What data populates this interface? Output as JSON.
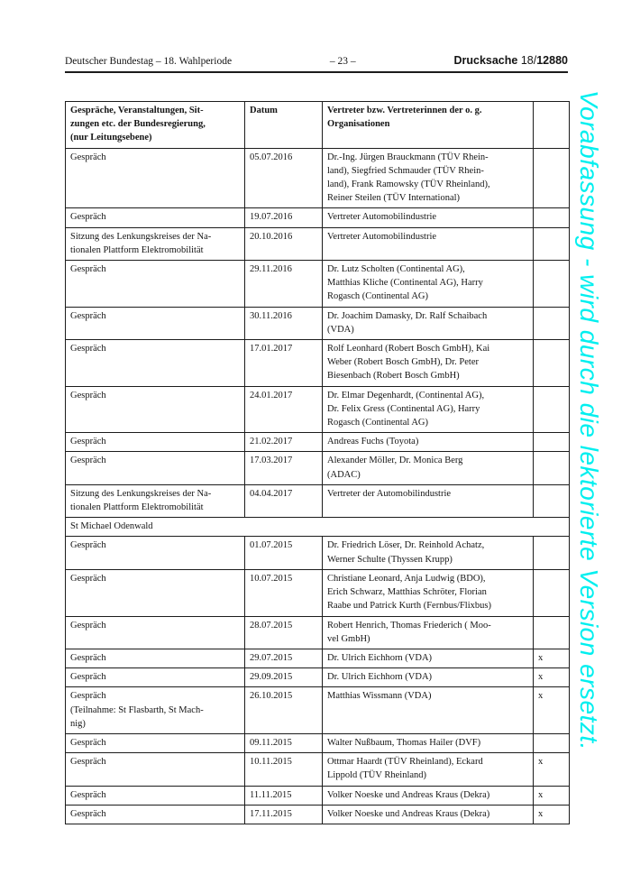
{
  "page_header": {
    "left": "Deutscher Bundestag – 18. Wahlperiode",
    "center": "– 23 –",
    "right_label": "Drucksache",
    "right_number_prefix": "18/",
    "right_number": "12880"
  },
  "watermark": {
    "text": "Vorabfassung - wird durch die lektorierte Version ersetzt.",
    "color": "#00efef"
  },
  "table": {
    "columns": [
      {
        "label": "Gespräche, Veranstaltungen, Sit-\nzungen etc. der Bundesregierung,\n(nur Leitungsebene)"
      },
      {
        "label": "Datum"
      },
      {
        "label": "Vertreter bzw. Vertreterinnen der o. g.\nOrganisationen"
      },
      {
        "label": ""
      }
    ],
    "mark_symbol": "x",
    "rows": [
      {
        "type": "data",
        "event": "Gespräch",
        "date": "05.07.2016",
        "representatives": "Dr.-Ing. Jürgen Brauckmann (TÜV Rhein-\nland), Siegfried Schmauder (TÜV Rhein-\nland), Frank Ramowsky (TÜV Rheinland),\nReiner Steilen (TÜV International)",
        "mark": ""
      },
      {
        "type": "data",
        "event": "Gespräch",
        "date": "19.07.2016",
        "representatives": "Vertreter Automobilindustrie",
        "mark": ""
      },
      {
        "type": "data",
        "event": "Sitzung des Lenkungskreises der Na-\ntionalen Plattform Elektromobilität",
        "date": "20.10.2016",
        "representatives": "Vertreter Automobilindustrie",
        "mark": ""
      },
      {
        "type": "data",
        "event": "Gespräch",
        "date": "29.11.2016",
        "representatives": "Dr. Lutz Scholten (Continental AG),\nMatthias Kliche (Continental AG), Harry\nRogasch (Continental AG)",
        "mark": ""
      },
      {
        "type": "data",
        "event": "Gespräch",
        "date": "30.11.2016",
        "representatives": "Dr. Joachim Damasky, Dr. Ralf Schaibach\n(VDA)",
        "mark": ""
      },
      {
        "type": "data",
        "event": "Gespräch",
        "date": "17.01.2017",
        "representatives": "Rolf Leonhard (Robert Bosch GmbH), Kai\nWeber (Robert Bosch GmbH), Dr. Peter\nBiesenbach (Robert Bosch GmbH)",
        "mark": ""
      },
      {
        "type": "data",
        "event": "Gespräch",
        "date": "24.01.2017",
        "representatives": "Dr. Elmar Degenhardt, (Continental AG),\nDr. Felix Gress (Continental AG), Harry\nRogasch (Continental AG)",
        "mark": ""
      },
      {
        "type": "data",
        "event": "Gespräch",
        "date": "21.02.2017",
        "representatives": "Andreas Fuchs (Toyota)",
        "mark": ""
      },
      {
        "type": "data",
        "event": "Gespräch",
        "date": "17.03.2017",
        "representatives": "Alexander Möller, Dr. Monica Berg\n(ADAC)",
        "mark": ""
      },
      {
        "type": "data",
        "event": "Sitzung des Lenkungskreises der Na-\ntionalen Plattform Elektromobilität",
        "date": "04.04.2017",
        "representatives": "Vertreter der Automobilindustrie",
        "mark": ""
      },
      {
        "type": "section",
        "title": "St Michael Odenwald"
      },
      {
        "type": "data",
        "event": "Gespräch",
        "date": "01.07.2015",
        "representatives": "Dr. Friedrich Löser, Dr. Reinhold Achatz,\nWerner Schulte (Thyssen Krupp)",
        "mark": ""
      },
      {
        "type": "data",
        "event": "Gespräch",
        "date": "10.07.2015",
        "representatives": "Christiane Leonard, Anja Ludwig (BDO),\nErich Schwarz, Matthias Schröter, Florian\nRaabe und Patrick Kurth (Fernbus/Flixbus)",
        "mark": ""
      },
      {
        "type": "data",
        "event": "Gespräch",
        "date": "28.07.2015",
        "representatives": "Robert Henrich, Thomas Friederich ( Moo-\nvel GmbH)",
        "mark": ""
      },
      {
        "type": "data",
        "event": "Gespräch",
        "date": "29.07.2015",
        "representatives": "Dr. Ulrich Eichhorn (VDA)",
        "mark": "x"
      },
      {
        "type": "data",
        "event": "Gespräch",
        "date": "29.09.2015",
        "representatives": "Dr. Ulrich Eichhorn (VDA)",
        "mark": "x"
      },
      {
        "type": "data",
        "event": "Gespräch\n(Teilnahme: St Flasbarth, St Mach-\nnig)",
        "date": "26.10.2015",
        "representatives": "Matthias Wissmann (VDA)",
        "mark": "x"
      },
      {
        "type": "data",
        "event": "Gespräch",
        "date": "09.11.2015",
        "representatives": "Walter Nußbaum, Thomas Hailer (DVF)",
        "mark": ""
      },
      {
        "type": "data",
        "event": "Gespräch",
        "date": "10.11.2015",
        "representatives": "Ottmar Haardt (TÜV Rheinland), Eckard\nLippold (TÜV Rheinland)",
        "mark": "x"
      },
      {
        "type": "data",
        "event": "Gespräch",
        "date": "11.11.2015",
        "representatives": "Volker Noeske und Andreas Kraus (Dekra)",
        "mark": "x"
      },
      {
        "type": "data",
        "event": "Gespräch",
        "date": "17.11.2015",
        "representatives": "Volker Noeske und Andreas Kraus (Dekra)",
        "mark": "x"
      }
    ]
  }
}
